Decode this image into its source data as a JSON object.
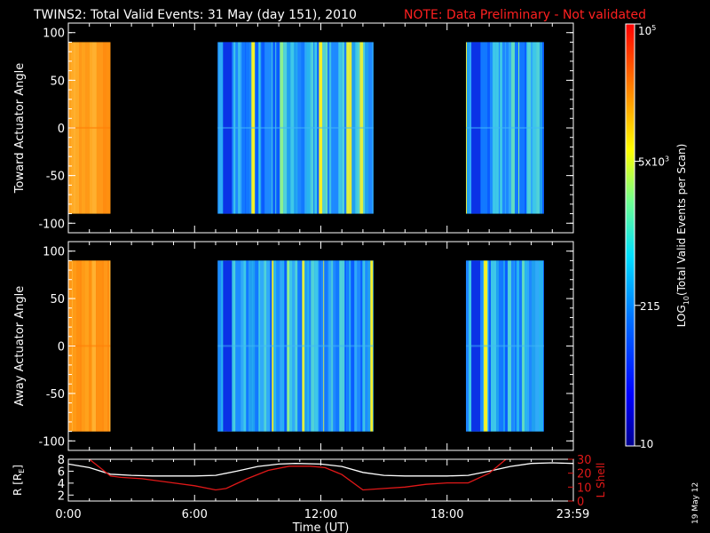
{
  "title": {
    "main": "TWINS2: Total Valid Events: 31 May (day 151), 2010",
    "note": "NOTE: Data Preliminary - Not validated"
  },
  "colors": {
    "background": "#000000",
    "foreground": "#ffffff",
    "note": "#ff2020",
    "lshell": "#e01818"
  },
  "colorbar": {
    "label": "LOG10(Total Valid Events per Scan)",
    "label_parts": {
      "pre": "LOG",
      "sub": "10",
      "post": "(Total Valid Events per Scan)"
    },
    "ticks": [
      {
        "label": "10",
        "value": 10
      },
      {
        "label": "215",
        "value": 215
      },
      {
        "label": "5x10^3",
        "value": 5000,
        "parts": {
          "base": "5x10",
          "sup": "3"
        }
      },
      {
        "label": "10^5",
        "value": 100000,
        "parts": {
          "base": "10",
          "sup": "5"
        }
      }
    ],
    "range": [
      10,
      100000
    ],
    "scale": "log"
  },
  "chart_data": [
    {
      "type": "heatmap",
      "name": "toward",
      "ylabel": "Toward Actuator Angle",
      "xlim": [
        0,
        24
      ],
      "ylim": [
        -110,
        110
      ],
      "yticks": [
        {
          "label": "100",
          "value": 100
        },
        {
          "label": "50",
          "value": 50
        },
        {
          "label": "0",
          "value": 0
        },
        {
          "label": "-50",
          "value": -50
        },
        {
          "label": "-100",
          "value": -100
        }
      ],
      "angle_range": [
        -90,
        90
      ],
      "segments": [
        {
          "start_h": 0.0,
          "end_h": 2.0,
          "level": "high",
          "approx_counts": 30000
        },
        {
          "start_h": 7.1,
          "end_h": 14.5,
          "level": "medium",
          "approx_counts": 250
        },
        {
          "start_h": 18.9,
          "end_h": 22.6,
          "level": "medium",
          "approx_counts": 300
        }
      ]
    },
    {
      "type": "heatmap",
      "name": "away",
      "ylabel": "Away Actuator Angle",
      "xlim": [
        0,
        24
      ],
      "ylim": [
        -110,
        110
      ],
      "yticks": [
        {
          "label": "100",
          "value": 100
        },
        {
          "label": "50",
          "value": 50
        },
        {
          "label": "0",
          "value": 0
        },
        {
          "label": "-50",
          "value": -50
        },
        {
          "label": "-100",
          "value": -100
        }
      ],
      "angle_range": [
        -90,
        90
      ],
      "segments": [
        {
          "start_h": 0.0,
          "end_h": 2.0,
          "level": "high",
          "approx_counts": 30000
        },
        {
          "start_h": 7.1,
          "end_h": 14.5,
          "level": "medium",
          "approx_counts": 250
        },
        {
          "start_h": 18.9,
          "end_h": 22.6,
          "level": "medium",
          "approx_counts": 300
        }
      ]
    },
    {
      "type": "line",
      "name": "orbit",
      "ylabel": "R [RE]",
      "ylabel_parts": {
        "pre": "R [R",
        "sub": "E",
        "post": "]"
      },
      "y2label": "L Shell",
      "xlabel": "Time (UT)",
      "xlim": [
        0,
        24
      ],
      "ylim": [
        1,
        8
      ],
      "y2lim": [
        0,
        30
      ],
      "yticks": [
        {
          "label": "8",
          "value": 8
        },
        {
          "label": "6",
          "value": 6
        },
        {
          "label": "4",
          "value": 4
        },
        {
          "label": "2",
          "value": 2
        }
      ],
      "y2ticks": [
        {
          "label": "30",
          "value": 30
        },
        {
          "label": "20",
          "value": 20
        },
        {
          "label": "10",
          "value": 10
        },
        {
          "label": "0",
          "value": 0
        }
      ],
      "xticks": [
        {
          "label": "0:00",
          "value": 0
        },
        {
          "label": "6:00",
          "value": 6
        },
        {
          "label": "12:00",
          "value": 12
        },
        {
          "label": "18:00",
          "value": 18
        },
        {
          "label": "23:59",
          "value": 23.98
        }
      ],
      "series": [
        {
          "axis": "left",
          "x": [
            0,
            1,
            2,
            3,
            4,
            5,
            6,
            7,
            8,
            9,
            10,
            10.8,
            12,
            13,
            14,
            15,
            16,
            17,
            18,
            19,
            20,
            21,
            22,
            23,
            23.98
          ],
          "values": [
            7.2,
            6.6,
            5.5,
            5.3,
            5.2,
            5.2,
            5.2,
            5.3,
            6.0,
            6.8,
            7.2,
            7.3,
            7.2,
            6.8,
            5.8,
            5.3,
            5.2,
            5.2,
            5.2,
            5.3,
            6.0,
            6.8,
            7.3,
            7.4,
            7.3
          ]
        },
        {
          "axis": "right",
          "x": [
            1.0,
            1.5,
            2.0,
            2.5,
            3.5,
            5.0,
            6.0,
            7.0,
            7.5,
            8.5,
            9.5,
            10.5,
            11.5,
            12.2,
            13.0,
            14.0,
            15.0,
            16.0,
            17.0,
            18.0,
            19.0,
            20.0,
            20.8
          ],
          "values": [
            30,
            24,
            18,
            17,
            16,
            13,
            11,
            8,
            9,
            16,
            22,
            25,
            25,
            24,
            19,
            8,
            9,
            10,
            12,
            13,
            13,
            20,
            30
          ]
        }
      ]
    }
  ],
  "date_stamp": "19 May 12"
}
